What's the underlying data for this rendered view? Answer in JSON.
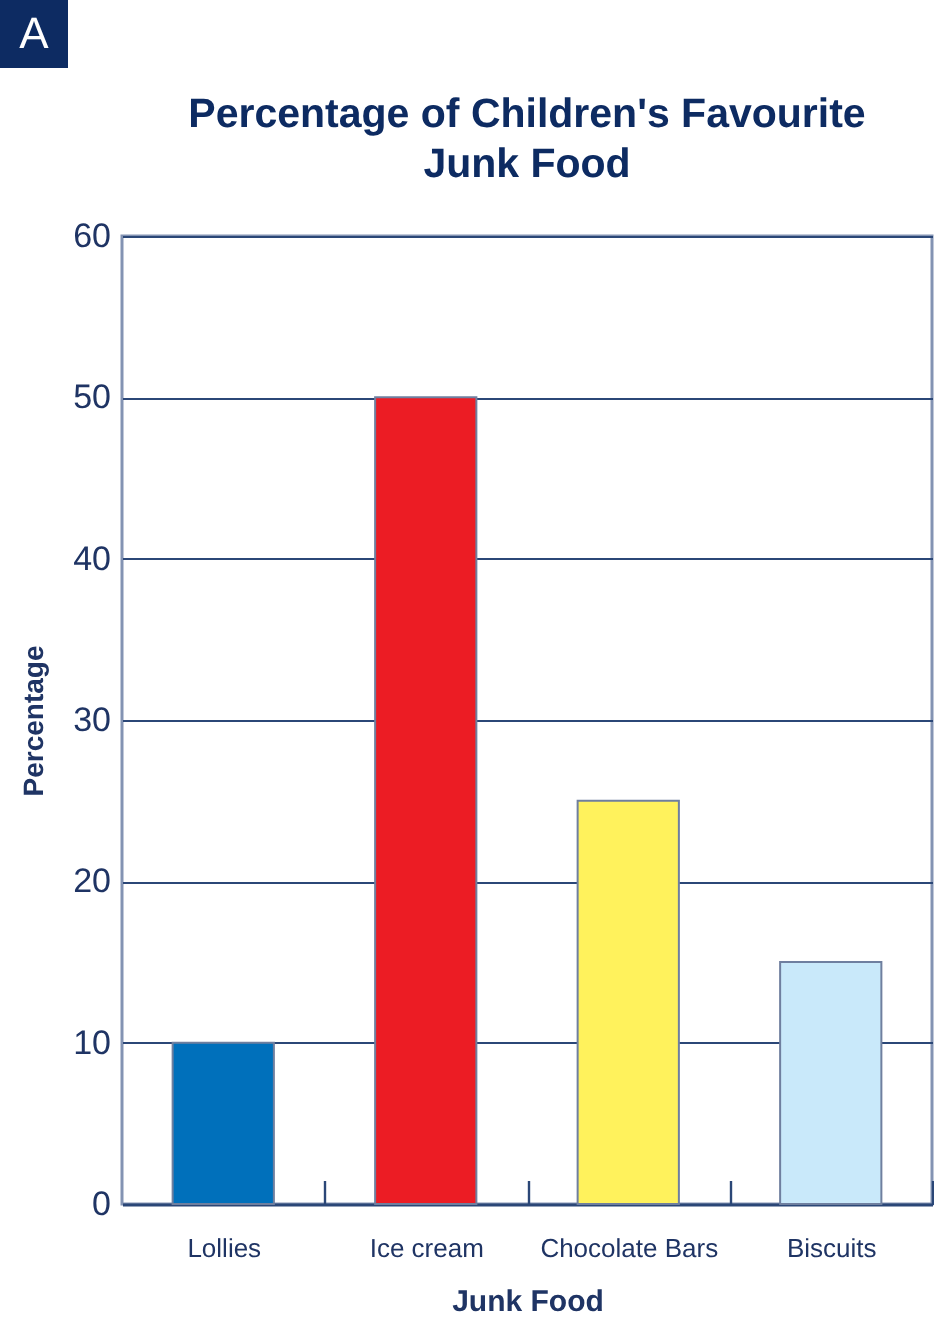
{
  "chart_data": {
    "type": "bar",
    "title": "Percentage of Children's Favourite\nJunk Food",
    "annotations": [
      "A"
    ],
    "xlabel": "Junk Food",
    "ylabel": "Percentage",
    "categories": [
      "Lollies",
      "Ice cream",
      "Chocolate Bars",
      "Biscuits"
    ],
    "values": [
      10,
      50,
      25,
      15
    ],
    "colors": [
      "#0070bb",
      "#ec1c24",
      "#fff25c",
      "#c9e9fa"
    ],
    "ylim": [
      0,
      60
    ],
    "yticks": [
      0,
      10,
      20,
      30,
      40,
      50,
      60
    ],
    "grid": true
  }
}
